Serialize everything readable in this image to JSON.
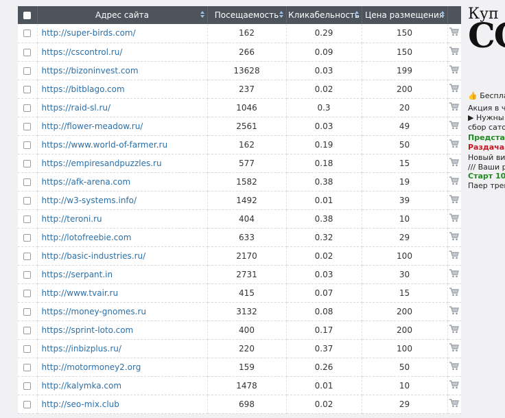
{
  "table": {
    "headers": {
      "site": "Адрес сайта",
      "visits": "Посещаемость",
      "ctr": "Кликабельность",
      "price": "Цена размещения"
    },
    "rows": [
      {
        "url": "http://super-birds.com/",
        "visits": "162",
        "ctr": "0.29",
        "price": "150"
      },
      {
        "url": "https://cscontrol.ru/",
        "visits": "266",
        "ctr": "0.09",
        "price": "150"
      },
      {
        "url": "https://bizoninvest.com",
        "visits": "13628",
        "ctr": "0.03",
        "price": "199"
      },
      {
        "url": "https://bitblago.com",
        "visits": "237",
        "ctr": "0.02",
        "price": "200"
      },
      {
        "url": "https://raid-sl.ru/",
        "visits": "1046",
        "ctr": "0.3",
        "price": "20"
      },
      {
        "url": "http://flower-meadow.ru/",
        "visits": "2561",
        "ctr": "0.03",
        "price": "49"
      },
      {
        "url": "https://www.world-of-farmer.ru",
        "visits": "162",
        "ctr": "0.19",
        "price": "50"
      },
      {
        "url": "https://empiresandpuzzles.ru",
        "visits": "577",
        "ctr": "0.18",
        "price": "15"
      },
      {
        "url": "https://afk-arena.com",
        "visits": "1582",
        "ctr": "0.38",
        "price": "19"
      },
      {
        "url": "http://w3-systems.info/",
        "visits": "1492",
        "ctr": "0.01",
        "price": "39"
      },
      {
        "url": "http://teroni.ru",
        "visits": "404",
        "ctr": "0.38",
        "price": "10"
      },
      {
        "url": "http://lotofreebie.com",
        "visits": "633",
        "ctr": "0.32",
        "price": "29"
      },
      {
        "url": "http://basic-industries.ru/",
        "visits": "2170",
        "ctr": "0.02",
        "price": "100"
      },
      {
        "url": "https://serpant.in",
        "visits": "2731",
        "ctr": "0.03",
        "price": "30"
      },
      {
        "url": "http://www.tvair.ru",
        "visits": "415",
        "ctr": "0.07",
        "price": "15"
      },
      {
        "url": "https://money-gnomes.ru",
        "visits": "3132",
        "ctr": "0.08",
        "price": "200"
      },
      {
        "url": "https://sprint-loto.com",
        "visits": "400",
        "ctr": "0.17",
        "price": "200"
      },
      {
        "url": "https://inbizplus.ru/",
        "visits": "220",
        "ctr": "0.37",
        "price": "100"
      },
      {
        "url": "http://motormoney2.org",
        "visits": "159",
        "ctr": "0.26",
        "price": "50"
      },
      {
        "url": "http://kalymka.com",
        "visits": "1478",
        "ctr": "0.01",
        "price": "10"
      },
      {
        "url": "http://seo-mix.club",
        "visits": "698",
        "ctr": "0.02",
        "price": "29"
      }
    ],
    "row_icon": "cart-icon"
  },
  "side": {
    "title1": "Куп",
    "title2": "СС",
    "lines": [
      {
        "text": "👍 Беспла",
        "style": "normal"
      },
      {
        "text": "Акция в ч",
        "style": "normal"
      },
      {
        "text": "▶ Нужны",
        "style": "normal"
      },
      {
        "text": "сбор сатов",
        "style": "normal"
      },
      {
        "text": "Предстар",
        "style": "green"
      },
      {
        "text": "Раздача",
        "style": "red"
      },
      {
        "text": "Новый вид",
        "style": "normal"
      },
      {
        "text": "/// Ваши р",
        "style": "normal"
      },
      {
        "text": "Старт 10",
        "style": "green"
      },
      {
        "text": "Паер треш",
        "style": "normal"
      }
    ]
  },
  "colors": {
    "header_bg": "#4d545c",
    "link": "#2a6fa8",
    "green": "#1f8a1f",
    "red": "#c8141e"
  }
}
